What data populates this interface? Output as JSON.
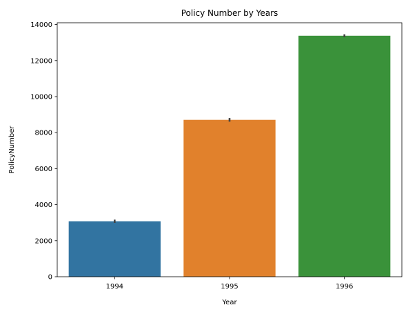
{
  "chart_data": {
    "type": "bar",
    "title": "Policy Number by Years",
    "xlabel": "Year",
    "ylabel": "PolicyNumber",
    "categories": [
      "1994",
      "1995",
      "1996"
    ],
    "values": [
      3080,
      8710,
      13380
    ],
    "error_bars": [
      [
        2990,
        3170
      ],
      [
        8610,
        8810
      ],
      [
        13300,
        13460
      ]
    ],
    "colors": [
      "#3274a1",
      "#e1812c",
      "#3a923a"
    ],
    "ylim": [
      0,
      14100
    ],
    "yticks": [
      0,
      2000,
      4000,
      6000,
      8000,
      10000,
      12000,
      14000
    ],
    "grid": false,
    "legend": "none"
  }
}
